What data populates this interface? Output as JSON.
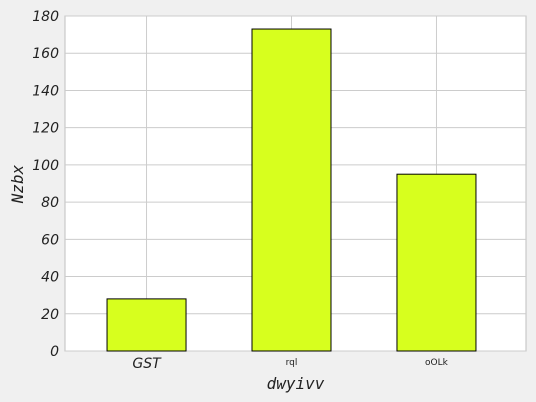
{
  "chart_data": {
    "type": "bar",
    "categories": [
      "GST",
      "rql",
      "oOLk"
    ],
    "values": [
      28,
      173,
      95
    ],
    "xlabel": "dwyivv",
    "ylabel": "Nzbx",
    "ylim": [
      0,
      180
    ],
    "yticks": [
      0,
      20,
      40,
      60,
      80,
      100,
      120,
      140,
      160,
      180
    ],
    "grid": true,
    "legend": "none",
    "colors": {
      "bar_fill": "#d7ff1e",
      "bar_edge": "#000000",
      "grid": "#cccccc",
      "plot_background": "#ffffff",
      "figure_background": "#f0f0f0"
    }
  }
}
